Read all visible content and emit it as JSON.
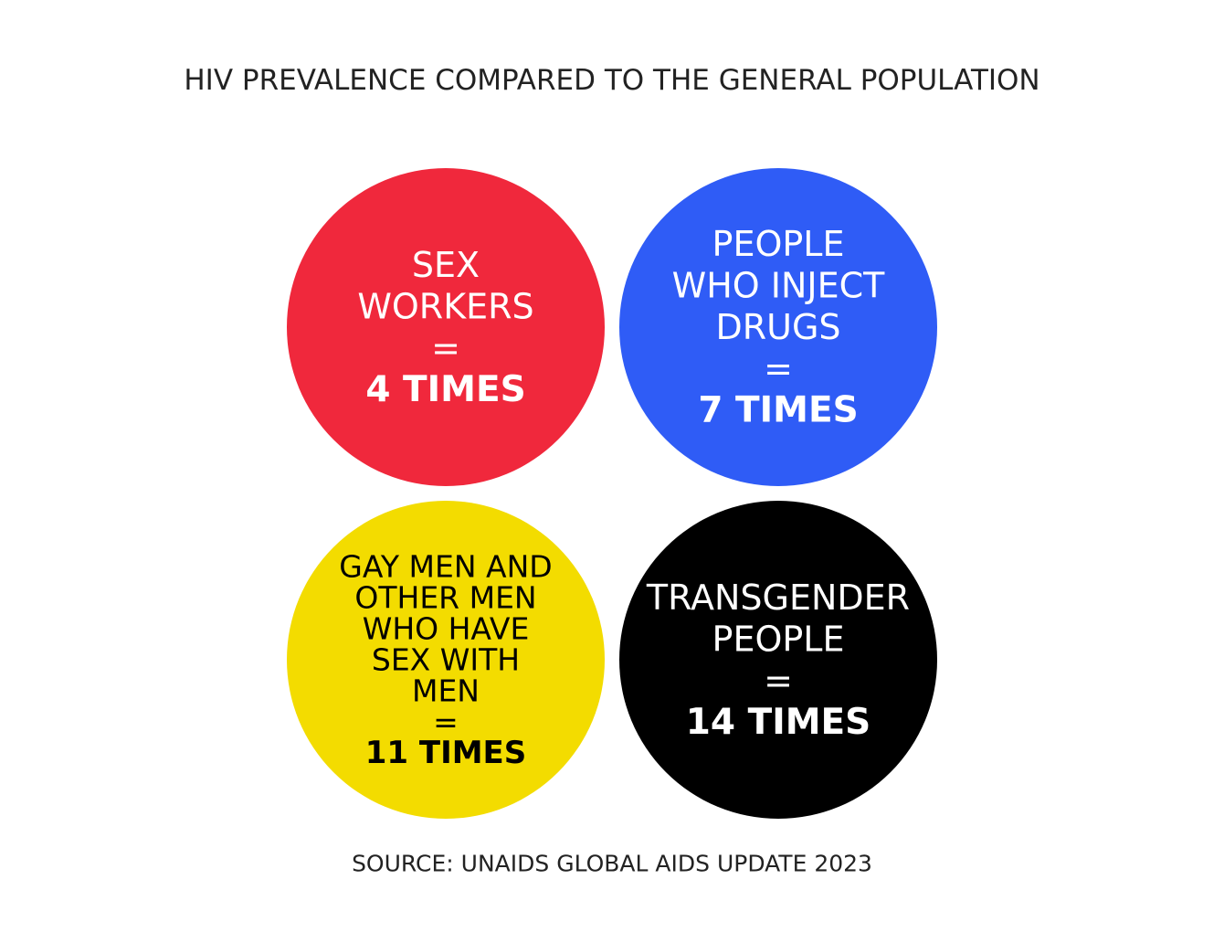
{
  "title": "HIV PREVALENCE COMPARED TO THE GENERAL POPULATION",
  "groups": [
    {
      "label_lines": [
        "SEX",
        "WORKERS"
      ],
      "equals": "=",
      "value": "4 TIMES",
      "color": "#f0283c",
      "text_color": "#ffffff"
    },
    {
      "label_lines": [
        "PEOPLE",
        "WHO INJECT",
        "DRUGS"
      ],
      "equals": "=",
      "value": "7 TIMES",
      "color": "#2f5cf6",
      "text_color": "#ffffff"
    },
    {
      "label_lines": [
        "GAY MEN AND",
        "OTHER MEN",
        "WHO HAVE",
        "SEX WITH",
        "MEN"
      ],
      "equals": "=",
      "value": "11 TIMES",
      "color": "#f3dc00",
      "text_color": "#000000"
    },
    {
      "label_lines": [
        "TRANSGENDER",
        "PEOPLE"
      ],
      "equals": "=",
      "value": "14 TIMES",
      "color": "#000000",
      "text_color": "#ffffff"
    }
  ],
  "source": "SOURCE: UNAIDS GLOBAL AIDS UPDATE 2023"
}
